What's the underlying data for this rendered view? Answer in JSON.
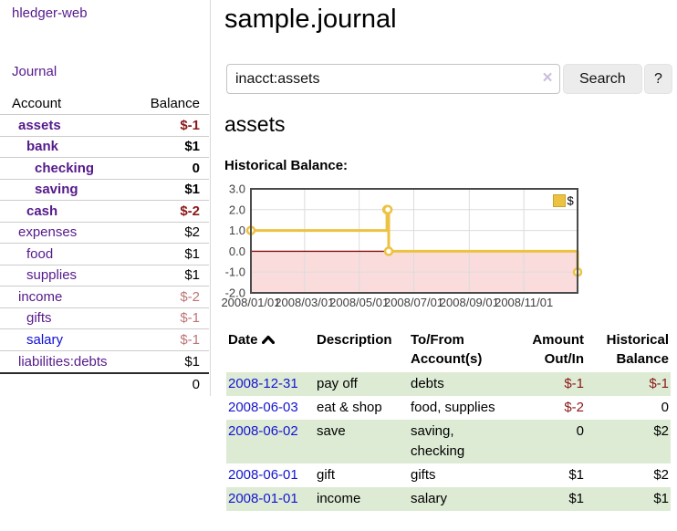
{
  "app": {
    "name": "hledger-web"
  },
  "nav": {
    "journal": "Journal"
  },
  "sidebar": {
    "account_col": "Account",
    "balance_col": "Balance",
    "accounts": [
      {
        "name": "assets",
        "balance": "$-1",
        "indent": 1,
        "bold": true,
        "bal_tone": "neg-strong",
        "link_tone": "purple"
      },
      {
        "name": "bank",
        "balance": "$1",
        "indent": 2,
        "bold": true,
        "bal_tone": "",
        "link_tone": "purple"
      },
      {
        "name": "checking",
        "balance": "0",
        "indent": 3,
        "bold": true,
        "bal_tone": "",
        "link_tone": "purple"
      },
      {
        "name": "saving",
        "balance": "$1",
        "indent": 3,
        "bold": true,
        "bal_tone": "",
        "link_tone": "purple"
      },
      {
        "name": "cash",
        "balance": "$-2",
        "indent": 2,
        "bold": true,
        "bal_tone": "neg-strong",
        "link_tone": "purple"
      },
      {
        "name": "expenses",
        "balance": "$2",
        "indent": 1,
        "bold": false,
        "bal_tone": "",
        "link_tone": "purple"
      },
      {
        "name": "food",
        "balance": "$1",
        "indent": 2,
        "bold": false,
        "bal_tone": "",
        "link_tone": "purple"
      },
      {
        "name": "supplies",
        "balance": "$1",
        "indent": 2,
        "bold": false,
        "bal_tone": "",
        "link_tone": "purple"
      },
      {
        "name": "income",
        "balance": "$-2",
        "indent": 1,
        "bold": false,
        "bal_tone": "neg-soft",
        "link_tone": "purple"
      },
      {
        "name": "gifts",
        "balance": "$-1",
        "indent": 2,
        "bold": false,
        "bal_tone": "neg-soft",
        "link_tone": "purple"
      },
      {
        "name": "salary",
        "balance": "$-1",
        "indent": 2,
        "bold": false,
        "bal_tone": "neg-soft",
        "link_tone": "blue"
      },
      {
        "name": "liabilities:debts",
        "balance": "$1",
        "indent": 1,
        "bold": false,
        "bal_tone": "",
        "link_tone": "purple"
      }
    ],
    "total": "0"
  },
  "main": {
    "title": "sample.journal",
    "section_heading": "assets",
    "chart_title": "Historical Balance:"
  },
  "search": {
    "value": "inacct:assets",
    "clear_glyph": "×",
    "button_label": "Search",
    "help_label": "?"
  },
  "chart_data": {
    "type": "line",
    "step": true,
    "title": "Historical Balance",
    "series": [
      {
        "name": "$",
        "color": "#EDC240",
        "points": [
          [
            "2008-01-01",
            1
          ],
          [
            "2008-06-01",
            2
          ],
          [
            "2008-06-02",
            2
          ],
          [
            "2008-06-03",
            0
          ],
          [
            "2008-12-31",
            -1
          ]
        ]
      }
    ],
    "x_range": [
      "2008-01-01",
      "2008-12-31"
    ],
    "ylim": [
      -2,
      3
    ],
    "yticks": [
      3,
      2,
      1,
      0,
      -1,
      -2
    ],
    "ytick_labels": [
      "3.0",
      "2.0",
      "1.0",
      "0.0",
      "-1.0",
      "-2.0"
    ],
    "xtick_labels": [
      "2008/01/01",
      "2008/03/01",
      "2008/05/01",
      "2008/07/01",
      "2008/09/01",
      "2008/11/01"
    ],
    "legend": {
      "label": "$",
      "position": "top-right"
    },
    "grid": true,
    "negative_region_color": "#fadcdc",
    "zero_line_color": "#8c1010",
    "border_color": "#4a4a4a",
    "grid_color": "#dcdcdc"
  },
  "register": {
    "columns": [
      {
        "label": "Date",
        "align": "left",
        "sorted_asc": true
      },
      {
        "label": "Description",
        "align": "left"
      },
      {
        "label": "To/From Account(s)",
        "align": "left"
      },
      {
        "label": "Amount Out/In",
        "align": "right"
      },
      {
        "label": "Historical Balance",
        "align": "right"
      }
    ],
    "rows": [
      {
        "date": "2008-12-31",
        "description": "pay off",
        "accounts": "debts",
        "amount": "$-1",
        "amount_neg": true,
        "balance": "$-1",
        "balance_neg": true
      },
      {
        "date": "2008-06-03",
        "description": "eat & shop",
        "accounts": "food, supplies",
        "amount": "$-2",
        "amount_neg": true,
        "balance": "0",
        "balance_neg": false
      },
      {
        "date": "2008-06-02",
        "description": "save",
        "accounts": "saving, checking",
        "amount": "0",
        "amount_neg": false,
        "balance": "$2",
        "balance_neg": false
      },
      {
        "date": "2008-06-01",
        "description": "gift",
        "accounts": "gifts",
        "amount": "$1",
        "amount_neg": false,
        "balance": "$2",
        "balance_neg": false
      },
      {
        "date": "2008-01-01",
        "description": "income",
        "accounts": "salary",
        "amount": "$1",
        "amount_neg": false,
        "balance": "$1",
        "balance_neg": false
      }
    ]
  }
}
